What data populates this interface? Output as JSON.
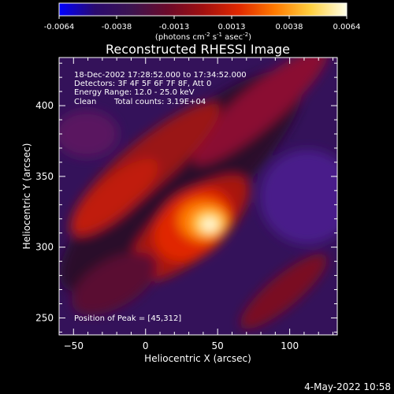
{
  "colorbar": {
    "ticks": [
      "-0.0064",
      "-0.0038",
      "-0.0013",
      "0.0013",
      "0.0038",
      "0.0064"
    ],
    "units_main": "(photons cm",
    "units_exp1": "-2",
    "units_mid": " s",
    "units_exp2": "-1",
    "units_tail": " asec",
    "units_exp3": "-2",
    "units_close": ")",
    "stops": [
      "#0000ff",
      "#2a0a6e",
      "#3c1450",
      "#6a0a2a",
      "#a01010",
      "#e02800",
      "#ff7a00",
      "#ffd040",
      "#ffffe8"
    ]
  },
  "chart_data": {
    "type": "heatmap",
    "title": "Reconstructed RHESSI Image",
    "xlabel": "Heliocentric X (arcsec)",
    "ylabel": "Heliocentric Y (arcsec)",
    "xlim": [
      -60,
      133
    ],
    "ylim": [
      238,
      434
    ],
    "xticks": [
      -50,
      0,
      50,
      100
    ],
    "yticks": [
      250,
      300,
      350,
      400
    ],
    "peak": [
      45,
      312
    ],
    "value_range": [
      -0.0064,
      0.0064
    ],
    "annotations": [
      "18-Dec-2002 17:28:52.000 to 17:34:52.000",
      "Detectors: 3F 4F 5F 6F 7F 8F, Att 0",
      "Energy Range: 12.0 - 25.0 keV",
      "Clean",
      "Total counts: 3.19E+04"
    ],
    "peak_label": "Position of Peak = [45,312]"
  },
  "footer": {
    "timestamp": "4-May-2022 10:58"
  }
}
